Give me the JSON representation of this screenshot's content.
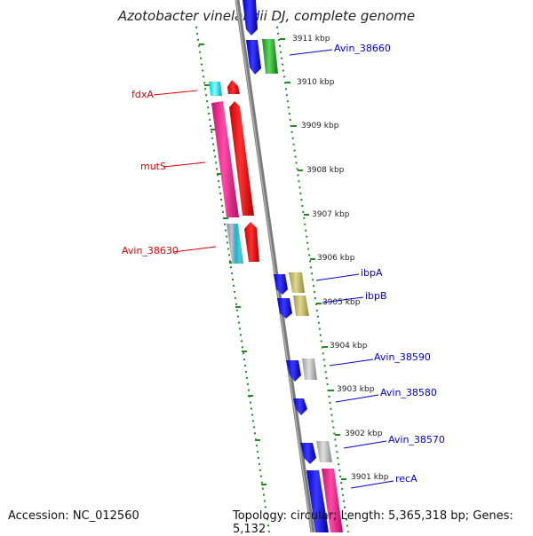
{
  "title": "Azotobacter vinelandii DJ, complete genome",
  "footer": {
    "accession": "Accession: NC_012560",
    "topology": "Topology: circular; Length: 5,365,318 bp; Genes: 5,132"
  },
  "colors": {
    "forward_label": "#0000cc",
    "reverse_label": "#dd0000",
    "ruler_dash": "#228B22",
    "backbone": "#808080"
  },
  "ticks": [
    "3911 kbp",
    "3910 kbp",
    "3909 kbp",
    "3908 kbp",
    "3907 kbp",
    "3906 kbp",
    "3905 kbp",
    "3904 kbp",
    "3903 kbp",
    "3902 kbp",
    "3901 kbp"
  ],
  "gene_labels": {
    "left": [
      "fdxA",
      "mutS",
      "Avin_38630"
    ],
    "right": [
      "Avin_38660",
      "ibpA",
      "ibpB",
      "Avin_38590",
      "Avin_38580",
      "Avin_38570",
      "recA"
    ]
  }
}
